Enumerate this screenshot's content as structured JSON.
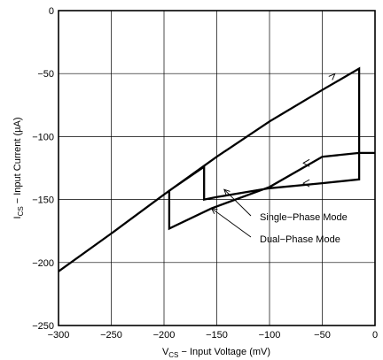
{
  "chart_data": {
    "type": "line",
    "title": "",
    "xlabel": {
      "main": "V",
      "sub": "CS",
      "rest": " − Input Voltage (mV)"
    },
    "ylabel": {
      "main": "I",
      "sub": "CS",
      "rest": " − Input Current (µA)"
    },
    "xlim": [
      -300,
      0
    ],
    "ylim": [
      -250,
      0
    ],
    "xticks": [
      -300,
      -250,
      -200,
      -150,
      -100,
      -50,
      0
    ],
    "yticks": [
      0,
      -50,
      -100,
      -150,
      -200,
      -250
    ],
    "xtick_labels": [
      "−300",
      "−250",
      "−200",
      "−150",
      "−100",
      "−50",
      "0"
    ],
    "ytick_labels": [
      "0",
      "−50",
      "−100",
      "−150",
      "−200",
      "−250"
    ],
    "grid": true,
    "series": [
      {
        "points": [
          [
            -300,
            -207
          ],
          [
            -250,
            -177
          ],
          [
            -200,
            -146
          ],
          [
            -150,
            -116
          ],
          [
            -100,
            -88
          ],
          [
            -50,
            -63
          ],
          [
            -15,
            -46
          ],
          [
            -15,
            -134
          ],
          [
            -50,
            -137
          ],
          [
            -100,
            -141
          ],
          [
            -150,
            -148
          ],
          [
            -162,
            -150
          ],
          [
            -162,
            -124
          ],
          [
            -195,
            -143
          ],
          [
            -195,
            -173
          ],
          [
            -155,
            -157
          ],
          [
            -100,
            -140
          ],
          [
            -50,
            -116
          ],
          [
            -15,
            -113
          ],
          [
            0,
            -113
          ]
        ]
      }
    ],
    "annotations": [
      {
        "text": "Single−Phase Mode",
        "arrow_tip": [
          -143,
          -142
        ]
      },
      {
        "text": "Dual−Phase Mode",
        "arrow_tip": [
          -155,
          -157
        ]
      }
    ],
    "direction_arrows": [
      {
        "at": [
          -38,
          -53
        ],
        "direction": "up-right"
      },
      {
        "at": [
          -68,
          -121
        ],
        "direction": "left"
      },
      {
        "at": [
          -68,
          -137
        ],
        "direction": "left"
      }
    ]
  }
}
